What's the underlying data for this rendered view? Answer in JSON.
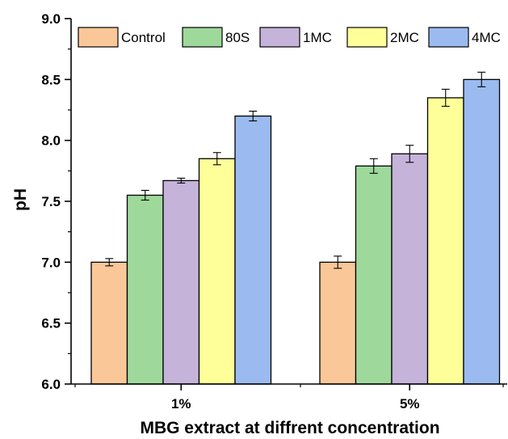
{
  "chart_data": {
    "type": "bar",
    "title": "",
    "xlabel": "MBG extract at diffrent concentration",
    "ylabel": "pH",
    "categories": [
      "1%",
      "5%"
    ],
    "ylim": [
      6.0,
      9.0
    ],
    "yticks": [
      "6.0",
      "6.5",
      "7.0",
      "7.5",
      "8.0",
      "8.5",
      "9.0"
    ],
    "legend_position": "top",
    "grid": false,
    "series": [
      {
        "name": "Control",
        "color": "#FAC898",
        "values": [
          7.0,
          7.0
        ],
        "errors": [
          0.03,
          0.05
        ]
      },
      {
        "name": "80S",
        "color": "#9ED99B",
        "values": [
          7.55,
          7.79
        ],
        "errors": [
          0.04,
          0.06
        ]
      },
      {
        "name": "1MC",
        "color": "#C5B3DA",
        "values": [
          7.67,
          7.89
        ],
        "errors": [
          0.02,
          0.07
        ]
      },
      {
        "name": "2MC",
        "color": "#FFFF99",
        "values": [
          7.85,
          8.35
        ],
        "errors": [
          0.05,
          0.07
        ]
      },
      {
        "name": "4MC",
        "color": "#9BBBF0",
        "values": [
          8.2,
          8.5
        ],
        "errors": [
          0.04,
          0.06
        ]
      }
    ]
  }
}
